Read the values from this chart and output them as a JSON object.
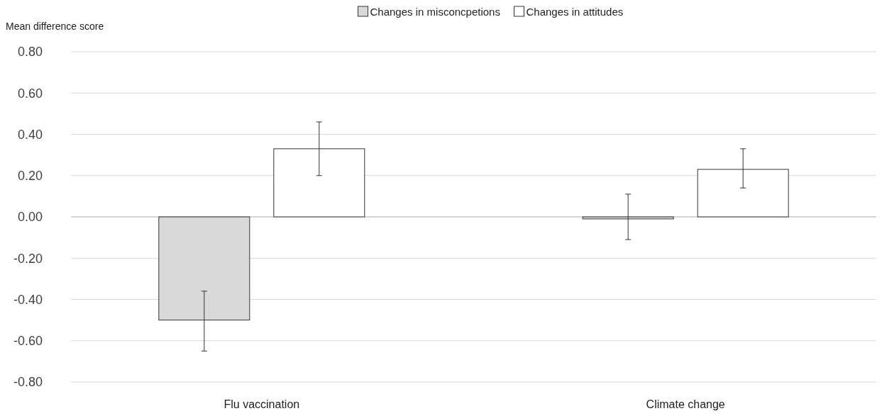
{
  "chart_data": {
    "type": "bar",
    "ylabel": "Mean difference score",
    "categories": [
      "Flu vaccination",
      "Climate change"
    ],
    "series": [
      {
        "name": "Changes in misconcpetions",
        "color": "#d9d9d9",
        "values": [
          -0.5,
          -0.01
        ],
        "errors": [
          [
            -0.65,
            -0.36
          ],
          [
            -0.11,
            0.11
          ]
        ]
      },
      {
        "name": "Changes in attitudes",
        "color": "#ffffff",
        "values": [
          0.33,
          0.23
        ],
        "errors": [
          [
            0.2,
            0.46
          ],
          [
            0.14,
            0.33
          ]
        ]
      }
    ],
    "ylim": [
      -0.8,
      0.8
    ],
    "yticks": [
      {
        "value": -0.8,
        "label": "-0.80"
      },
      {
        "value": -0.6,
        "label": "-0.60"
      },
      {
        "value": -0.4,
        "label": "-0.40"
      },
      {
        "value": -0.2,
        "label": "-0.20"
      },
      {
        "value": 0,
        "label": "0.00"
      },
      {
        "value": 0.2,
        "label": "0.20"
      },
      {
        "value": 0.4,
        "label": "0.40"
      },
      {
        "value": 0.6,
        "label": "0.60"
      },
      {
        "value": 0.8,
        "label": "0.80"
      }
    ],
    "grid": "y",
    "legend": "top"
  }
}
